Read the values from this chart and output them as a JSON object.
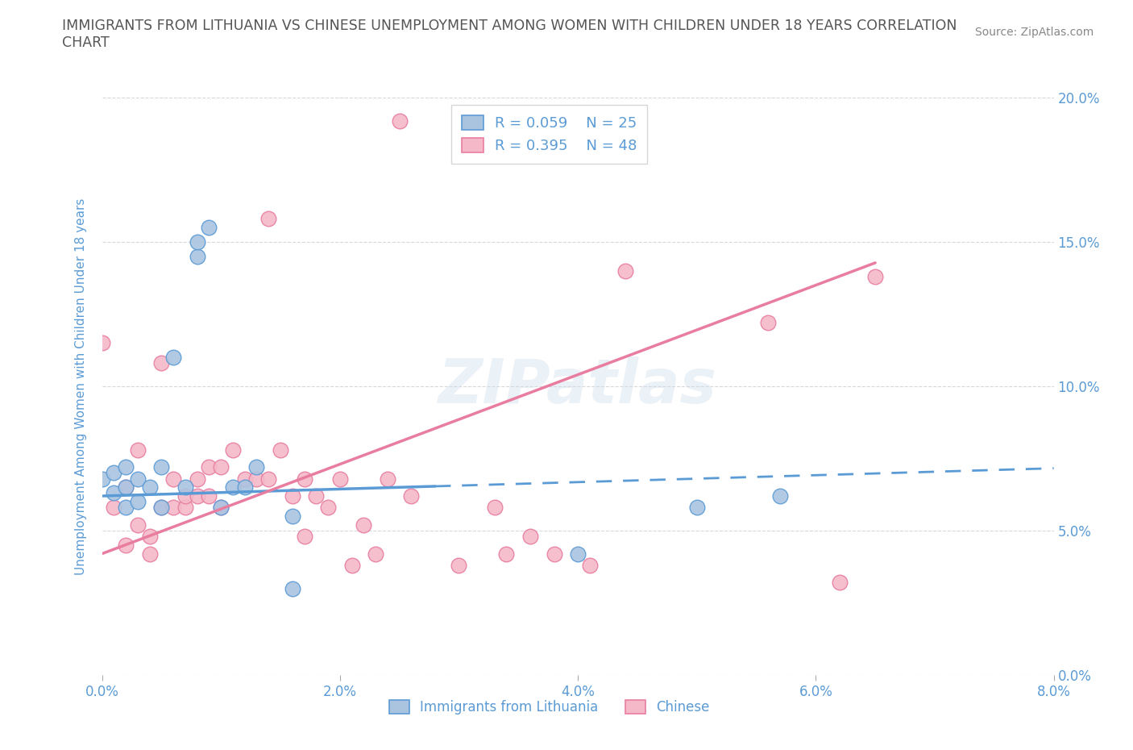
{
  "title": "IMMIGRANTS FROM LITHUANIA VS CHINESE UNEMPLOYMENT AMONG WOMEN WITH CHILDREN UNDER 18 YEARS CORRELATION\nCHART",
  "source_text": "Source: ZipAtlas.com",
  "ylabel": "Unemployment Among Women with Children Under 18 years",
  "xmin": 0.0,
  "xmax": 0.08,
  "ymin": 0.0,
  "ymax": 0.2,
  "blue_R": 0.059,
  "blue_N": 25,
  "pink_R": 0.395,
  "pink_N": 48,
  "legend1_label": "Immigrants from Lithuania",
  "legend2_label": "Chinese",
  "watermark": "ZIPatlas",
  "blue_scatter_x": [
    0.0,
    0.001,
    0.001,
    0.002,
    0.002,
    0.002,
    0.003,
    0.003,
    0.004,
    0.005,
    0.005,
    0.006,
    0.007,
    0.008,
    0.008,
    0.009,
    0.01,
    0.011,
    0.012,
    0.013,
    0.016,
    0.016,
    0.04,
    0.05,
    0.057
  ],
  "blue_scatter_y": [
    0.068,
    0.063,
    0.07,
    0.058,
    0.065,
    0.072,
    0.06,
    0.068,
    0.065,
    0.058,
    0.072,
    0.11,
    0.065,
    0.145,
    0.15,
    0.155,
    0.058,
    0.065,
    0.065,
    0.072,
    0.03,
    0.055,
    0.042,
    0.058,
    0.062
  ],
  "pink_scatter_x": [
    0.0,
    0.001,
    0.002,
    0.002,
    0.003,
    0.003,
    0.004,
    0.004,
    0.005,
    0.005,
    0.006,
    0.006,
    0.007,
    0.007,
    0.008,
    0.008,
    0.009,
    0.009,
    0.01,
    0.01,
    0.011,
    0.012,
    0.013,
    0.014,
    0.014,
    0.015,
    0.016,
    0.017,
    0.017,
    0.018,
    0.019,
    0.02,
    0.021,
    0.022,
    0.023,
    0.024,
    0.025,
    0.026,
    0.03,
    0.033,
    0.034,
    0.036,
    0.038,
    0.041,
    0.044,
    0.056,
    0.062,
    0.065
  ],
  "pink_scatter_y": [
    0.115,
    0.058,
    0.065,
    0.045,
    0.078,
    0.052,
    0.048,
    0.042,
    0.058,
    0.108,
    0.058,
    0.068,
    0.058,
    0.062,
    0.062,
    0.068,
    0.062,
    0.072,
    0.058,
    0.072,
    0.078,
    0.068,
    0.068,
    0.068,
    0.158,
    0.078,
    0.062,
    0.048,
    0.068,
    0.062,
    0.058,
    0.068,
    0.038,
    0.052,
    0.042,
    0.068,
    0.192,
    0.062,
    0.038,
    0.058,
    0.042,
    0.048,
    0.042,
    0.038,
    0.14,
    0.122,
    0.032,
    0.138
  ],
  "title_color": "#555555",
  "source_color": "#888888",
  "blue_color": "#aac4e0",
  "blue_line_color": "#5b9bd5",
  "pink_color": "#f4b8c8",
  "pink_line_color": "#e87da0",
  "axis_label_color": "#5b9bd5",
  "grid_color": "#d8d8d8",
  "legend_r_color": "#5b9bd5",
  "blue_line_intercept": 0.062,
  "blue_line_slope": 0.12,
  "pink_line_intercept": 0.042,
  "pink_line_slope": 1.55
}
